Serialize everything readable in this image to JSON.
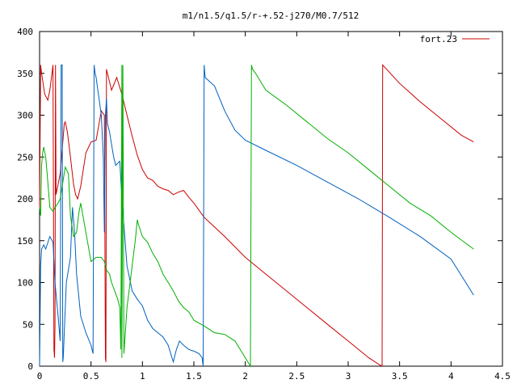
{
  "chart_data": {
    "type": "line",
    "title": "m1/n1.5/q1.5/r-+.52-j270/M0.7/512",
    "xlabel": "",
    "ylabel": "",
    "xlim": [
      0,
      4.5
    ],
    "ylim": [
      0,
      400
    ],
    "x_ticks": [
      0,
      0.5,
      1,
      1.5,
      2,
      2.5,
      3,
      3.5,
      4,
      4.5
    ],
    "x_tick_labels": [
      "0",
      "0.5",
      "1",
      "1.5",
      "2",
      "2.5",
      "3",
      "3.5",
      "4",
      "4.5"
    ],
    "y_ticks": [
      0,
      50,
      100,
      150,
      200,
      250,
      300,
      350,
      400
    ],
    "y_tick_labels": [
      "0",
      "50",
      "100",
      "150",
      "200",
      "250",
      "300",
      "350",
      "400"
    ],
    "grid": false,
    "legend_position": "top-right",
    "legend": [
      "fort.23"
    ],
    "series": [
      {
        "name": "fort.23",
        "color": "#cc0000",
        "x": [
          0,
          0.01,
          0.02,
          0.05,
          0.08,
          0.1,
          0.13,
          0.14,
          0.145,
          0.15,
          0.155,
          0.16,
          0.2,
          0.24,
          0.25,
          0.27,
          0.3,
          0.33,
          0.35,
          0.37,
          0.4,
          0.45,
          0.5,
          0.55,
          0.6,
          0.63,
          0.64,
          0.645,
          0.65,
          0.66,
          0.7,
          0.75,
          0.8,
          0.85,
          0.9,
          0.95,
          1.0,
          1.05,
          1.1,
          1.15,
          1.2,
          1.25,
          1.3,
          1.35,
          1.4,
          1.45,
          1.5,
          1.6,
          1.8,
          2.0,
          2.2,
          2.4,
          2.6,
          2.8,
          3.0,
          3.2,
          3.3,
          3.33,
          3.335,
          3.5,
          3.7,
          3.9,
          4.1,
          4.22
        ],
        "y": [
          190,
          360,
          350,
          325,
          318,
          330,
          360,
          20,
          10,
          50,
          360,
          205,
          230,
          290,
          292,
          280,
          250,
          218,
          205,
          200,
          215,
          255,
          268,
          270,
          305,
          300,
          10,
          5,
          355,
          350,
          330,
          345,
          325,
          300,
          275,
          252,
          235,
          225,
          222,
          215,
          212,
          210,
          205,
          208,
          210,
          202,
          195,
          178,
          155,
          130,
          110,
          90,
          70,
          50,
          30,
          10,
          2,
          0,
          360,
          338,
          316,
          296,
          276,
          268
        ]
      },
      {
        "name": "",
        "color": "#0060c0",
        "x": [
          0,
          0.01,
          0.02,
          0.04,
          0.06,
          0.1,
          0.13,
          0.15,
          0.18,
          0.2,
          0.21,
          0.22,
          0.225,
          0.23,
          0.26,
          0.3,
          0.32,
          0.34,
          0.36,
          0.4,
          0.45,
          0.5,
          0.52,
          0.53,
          0.535,
          0.54,
          0.55,
          0.6,
          0.62,
          0.63,
          0.64,
          0.65,
          0.66,
          0.68,
          0.7,
          0.72,
          0.74,
          0.78,
          0.8,
          0.85,
          0.9,
          0.95,
          1.0,
          1.05,
          1.1,
          1.15,
          1.2,
          1.25,
          1.3,
          1.33,
          1.36,
          1.4,
          1.45,
          1.5,
          1.55,
          1.58,
          1.59,
          1.6,
          1.61,
          1.7,
          1.8,
          1.9,
          2.0,
          2.2,
          2.5,
          2.8,
          3.1,
          3.4,
          3.7,
          4.0,
          4.22
        ],
        "y": [
          0,
          120,
          140,
          145,
          140,
          155,
          148,
          100,
          60,
          30,
          360,
          360,
          5,
          10,
          100,
          130,
          190,
          160,
          110,
          60,
          40,
          25,
          15,
          360,
          355,
          350,
          345,
          300,
          250,
          160,
          300,
          320,
          290,
          280,
          265,
          250,
          240,
          245,
          200,
          120,
          90,
          80,
          72,
          55,
          45,
          40,
          35,
          25,
          5,
          20,
          30,
          25,
          20,
          18,
          15,
          10,
          0,
          360,
          345,
          335,
          305,
          282,
          270,
          258,
          240,
          220,
          200,
          178,
          155,
          128,
          85
        ]
      },
      {
        "name": "",
        "color": "#00b000",
        "x": [
          0,
          0.01,
          0.02,
          0.03,
          0.04,
          0.06,
          0.08,
          0.1,
          0.13,
          0.15,
          0.18,
          0.2,
          0.25,
          0.28,
          0.3,
          0.33,
          0.36,
          0.38,
          0.4,
          0.45,
          0.5,
          0.55,
          0.6,
          0.63,
          0.65,
          0.68,
          0.7,
          0.73,
          0.76,
          0.78,
          0.79,
          0.8,
          0.8,
          0.81,
          0.82,
          0.85,
          0.9,
          0.93,
          0.95,
          0.96,
          1.0,
          1.05,
          1.1,
          1.15,
          1.2,
          1.25,
          1.3,
          1.35,
          1.4,
          1.45,
          1.5,
          1.6,
          1.7,
          1.8,
          1.9,
          2.0,
          2.05,
          2.06,
          2.07,
          2.1,
          2.2,
          2.4,
          2.6,
          2.8,
          3.0,
          3.2,
          3.4,
          3.6,
          3.8,
          4.0,
          4.22
        ],
        "y": [
          190,
          180,
          240,
          255,
          262,
          250,
          220,
          190,
          185,
          190,
          195,
          200,
          238,
          230,
          180,
          155,
          160,
          182,
          195,
          160,
          125,
          130,
          130,
          125,
          115,
          110,
          100,
          90,
          80,
          70,
          20,
          360,
          10,
          360,
          15,
          70,
          120,
          150,
          175,
          170,
          155,
          148,
          135,
          125,
          110,
          100,
          90,
          78,
          70,
          65,
          55,
          48,
          40,
          38,
          30,
          10,
          0,
          360,
          355,
          350,
          330,
          312,
          292,
          272,
          255,
          235,
          215,
          195,
          180,
          160,
          140
        ]
      }
    ]
  }
}
